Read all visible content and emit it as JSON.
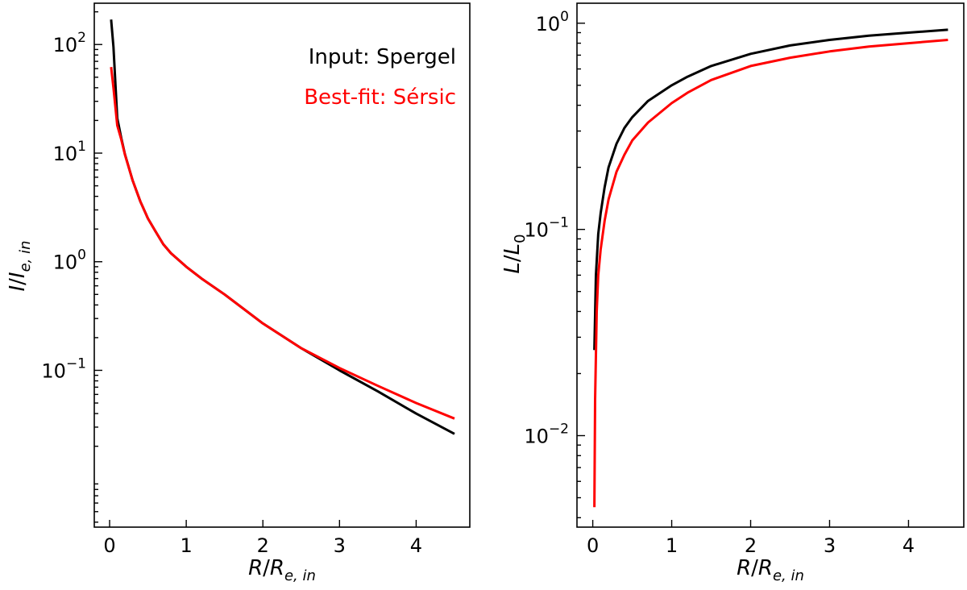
{
  "chart_data": [
    {
      "type": "line",
      "xlabel": "R/R_{e,in}",
      "ylabel": "I/I_{e,in}",
      "yscale": "log",
      "xlim": [
        -0.2,
        4.7
      ],
      "ylim": [
        0.0036,
        240
      ],
      "xticks": [
        0,
        1,
        2,
        3,
        4
      ],
      "yticks": [
        {
          "value": 0.1,
          "label": "10^{-1}"
        },
        {
          "value": 1,
          "label": "10^{0}"
        },
        {
          "value": 10,
          "label": "10^{1}"
        },
        {
          "value": 100,
          "label": "10^{2}"
        }
      ],
      "legend": {
        "placement": "top-right"
      },
      "series": [
        {
          "name": "Input: Spergel",
          "color": "#000000",
          "x": [
            0.02,
            0.05,
            0.1,
            0.15,
            0.2,
            0.3,
            0.4,
            0.5,
            0.6,
            0.7,
            0.8,
            1.0,
            1.2,
            1.5,
            2.0,
            2.5,
            3.0,
            3.5,
            4.0,
            4.5
          ],
          "y": [
            170,
            95,
            21,
            14,
            9.8,
            5.6,
            3.6,
            2.5,
            1.9,
            1.45,
            1.2,
            0.9,
            0.7,
            0.5,
            0.27,
            0.16,
            0.1,
            0.064,
            0.04,
            0.026
          ]
        },
        {
          "name": "Best-fit: Sérsic",
          "color": "#ff0000",
          "x": [
            0.02,
            0.05,
            0.1,
            0.15,
            0.2,
            0.3,
            0.4,
            0.5,
            0.6,
            0.7,
            0.8,
            1.0,
            1.2,
            1.5,
            2.0,
            2.5,
            3.0,
            3.5,
            4.0,
            4.5
          ],
          "y": [
            62,
            40,
            18,
            13.5,
            9.7,
            5.6,
            3.6,
            2.5,
            1.9,
            1.45,
            1.2,
            0.9,
            0.7,
            0.5,
            0.27,
            0.16,
            0.105,
            0.072,
            0.05,
            0.036
          ]
        }
      ]
    },
    {
      "type": "line",
      "xlabel": "R/R_{e,in}",
      "ylabel": "L/L_0",
      "yscale": "log",
      "xlim": [
        -0.2,
        4.7
      ],
      "ylim": [
        0.0036,
        1.25
      ],
      "xticks": [
        0,
        1,
        2,
        3,
        4
      ],
      "yticks": [
        {
          "value": 0.01,
          "label": "10^{-2}"
        },
        {
          "value": 0.1,
          "label": "10^{-1}"
        },
        {
          "value": 1,
          "label": "10^{0}"
        }
      ],
      "series": [
        {
          "name": "Input: Spergel",
          "color": "#000000",
          "x": [
            0.02,
            0.04,
            0.07,
            0.1,
            0.15,
            0.2,
            0.3,
            0.4,
            0.5,
            0.7,
            1.0,
            1.2,
            1.5,
            2.0,
            2.5,
            3.0,
            3.5,
            4.0,
            4.5
          ],
          "y": [
            0.026,
            0.06,
            0.095,
            0.12,
            0.16,
            0.2,
            0.26,
            0.31,
            0.35,
            0.42,
            0.5,
            0.55,
            0.62,
            0.71,
            0.78,
            0.83,
            0.87,
            0.9,
            0.93
          ]
        },
        {
          "name": "Best-fit: Sérsic",
          "color": "#ff0000",
          "x": [
            0.02,
            0.03,
            0.05,
            0.07,
            0.1,
            0.15,
            0.2,
            0.3,
            0.4,
            0.5,
            0.7,
            1.0,
            1.2,
            1.5,
            2.0,
            2.5,
            3.0,
            3.5,
            4.0,
            4.5
          ],
          "y": [
            0.0045,
            0.015,
            0.04,
            0.06,
            0.08,
            0.11,
            0.14,
            0.19,
            0.23,
            0.27,
            0.33,
            0.41,
            0.46,
            0.53,
            0.62,
            0.68,
            0.73,
            0.77,
            0.8,
            0.83
          ]
        }
      ]
    }
  ]
}
